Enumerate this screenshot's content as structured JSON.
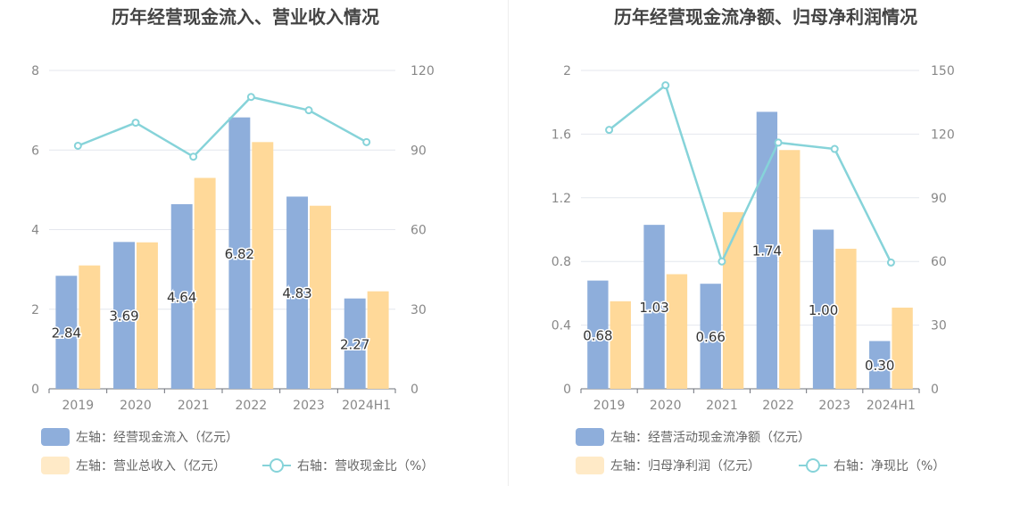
{
  "chart_data": [
    {
      "type": "bar",
      "title": "历年经营现金流入、营业收入情况",
      "categories": [
        "2019",
        "2020",
        "2021",
        "2022",
        "2023",
        "2024H1"
      ],
      "y_left": {
        "min": 0,
        "max": 8,
        "ticks": [
          "0",
          "2",
          "4",
          "6",
          "8"
        ]
      },
      "y_right": {
        "min": 0,
        "max": 120,
        "ticks": [
          "0",
          "30",
          "60",
          "90",
          "120"
        ]
      },
      "series": [
        {
          "name": "左轴：经营现金流入（亿元）",
          "axis": "left",
          "kind": "bar",
          "color": "#8eaedb",
          "values": [
            2.84,
            3.69,
            4.64,
            6.82,
            4.83,
            2.27
          ],
          "labels": [
            "2.84",
            "3.69",
            "4.64",
            "6.82",
            "4.83",
            "2.27"
          ]
        },
        {
          "name": "左轴：营业总收入（亿元）",
          "axis": "left",
          "kind": "bar",
          "color": "#ffd999",
          "values": [
            3.1,
            3.68,
            5.3,
            6.2,
            4.6,
            2.45
          ]
        },
        {
          "name": "右轴：营收现金比（%）",
          "axis": "right",
          "kind": "line",
          "color": "#86d3d9",
          "values": [
            91.6,
            100.3,
            87.5,
            110.0,
            105.0,
            93.0
          ]
        }
      ]
    },
    {
      "type": "bar",
      "title": "历年经营现金流净额、归母净利润情况",
      "categories": [
        "2019",
        "2020",
        "2021",
        "2022",
        "2023",
        "2024H1"
      ],
      "y_left": {
        "min": 0,
        "max": 2,
        "ticks": [
          "0",
          "0.4",
          "0.8",
          "1.2",
          "1.6",
          "2"
        ]
      },
      "y_right": {
        "min": 0,
        "max": 150,
        "ticks": [
          "0",
          "30",
          "60",
          "90",
          "120",
          "150"
        ]
      },
      "series": [
        {
          "name": "左轴：经营活动现金流净额（亿元）",
          "axis": "left",
          "kind": "bar",
          "color": "#8eaedb",
          "values": [
            0.68,
            1.03,
            0.66,
            1.74,
            1.0,
            0.3
          ],
          "labels": [
            "0.68",
            "1.03",
            "0.66",
            "1.74",
            "1.00",
            "0.30"
          ]
        },
        {
          "name": "左轴：归母净利润（亿元）",
          "axis": "left",
          "kind": "bar",
          "color": "#ffd999",
          "values": [
            0.55,
            0.72,
            1.11,
            1.5,
            0.88,
            0.51
          ]
        },
        {
          "name": "右轴：净现比（%）",
          "axis": "right",
          "kind": "line",
          "color": "#86d3d9",
          "values": [
            122.0,
            143.0,
            60.0,
            116.0,
            113.0,
            59.5
          ]
        }
      ]
    }
  ]
}
